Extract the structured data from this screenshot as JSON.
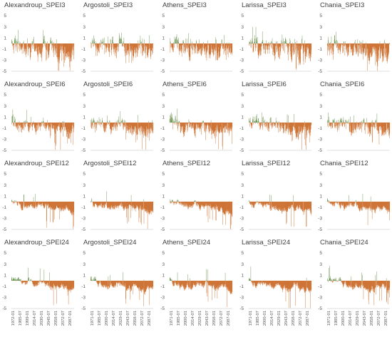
{
  "colors": {
    "positive": "#548235",
    "negative": "#c55a11",
    "axis": "#bfbfbf",
    "text": "#595959"
  },
  "chart_data": {
    "type": "bar",
    "layout": "5 columns x 4 rows of small multiples",
    "y_ticks": [
      "5",
      "3",
      "1",
      "-1",
      "-3",
      "-5"
    ],
    "ylim": [
      -5,
      5
    ],
    "x_ticks_by_column": [
      [
        "1972-01",
        "1985-07",
        "1999-01",
        "2014-07",
        "2030-01",
        "2045-07",
        "2058-01",
        "2072-07",
        "2087-01"
      ],
      [
        "1971-01",
        "1985-07",
        "2000-01",
        "2014-07",
        "2029-01",
        "2043-07",
        "2058-01",
        "2072-07",
        "2087-01"
      ],
      [
        "1971-01",
        "1985-07",
        "2000-01",
        "2014-07",
        "2029-01",
        "2043-07",
        "2058-01",
        "2072-07",
        "2087-01"
      ],
      [
        "1971-01",
        "1985-07",
        "2000-01",
        "2014-07",
        "2029-01",
        "2043-07",
        "2058-01",
        "2072-07",
        "2087-01"
      ],
      [
        "1971-01",
        "1985-07",
        "2000-01",
        "2014-07",
        "2029-01",
        "2043-07",
        "2058-01",
        "2072-07",
        "2087-01"
      ]
    ],
    "panels": [
      {
        "title": "Alexandroup_SPEI3",
        "row": 0,
        "col": 0,
        "scale": 3,
        "neg_depth": 2.5,
        "seed": 11
      },
      {
        "title": "Argostoli_SPEI3",
        "row": 0,
        "col": 1,
        "scale": 3,
        "neg_depth": 2.2,
        "seed": 12
      },
      {
        "title": "Athens_SPEI3",
        "row": 0,
        "col": 2,
        "scale": 3,
        "neg_depth": 2.8,
        "seed": 13
      },
      {
        "title": "Larissa_SPEI3",
        "row": 0,
        "col": 3,
        "scale": 3,
        "neg_depth": 3.0,
        "seed": 14
      },
      {
        "title": "Chania_SPEI3",
        "row": 0,
        "col": 4,
        "scale": 3,
        "neg_depth": 2.4,
        "seed": 15
      },
      {
        "title": "Alexandroup_SPEI6",
        "row": 1,
        "col": 0,
        "scale": 6,
        "neg_depth": 3.0,
        "seed": 21
      },
      {
        "title": "Argostoli_SPEI6",
        "row": 1,
        "col": 1,
        "scale": 6,
        "neg_depth": 2.6,
        "seed": 22
      },
      {
        "title": "Athens_SPEI6",
        "row": 1,
        "col": 2,
        "scale": 6,
        "neg_depth": 3.2,
        "seed": 23
      },
      {
        "title": "Larissa_SPEI6",
        "row": 1,
        "col": 3,
        "scale": 6,
        "neg_depth": 3.6,
        "seed": 24
      },
      {
        "title": "Chania_SPEI6",
        "row": 1,
        "col": 4,
        "scale": 6,
        "neg_depth": 2.5,
        "seed": 25
      },
      {
        "title": "Alexandroup_SPEI12",
        "row": 2,
        "col": 0,
        "scale": 12,
        "neg_depth": 3.4,
        "seed": 31
      },
      {
        "title": "Argostoli_SPEI12",
        "row": 2,
        "col": 1,
        "scale": 12,
        "neg_depth": 2.8,
        "seed": 32
      },
      {
        "title": "Athens_SPEI12",
        "row": 2,
        "col": 2,
        "scale": 12,
        "neg_depth": 3.0,
        "seed": 33
      },
      {
        "title": "Larissa_SPEI12",
        "row": 2,
        "col": 3,
        "scale": 12,
        "neg_depth": 3.8,
        "seed": 34
      },
      {
        "title": "Chania_SPEI12",
        "row": 2,
        "col": 4,
        "scale": 12,
        "neg_depth": 2.6,
        "seed": 35
      },
      {
        "title": "Alexandroup_SPEI24",
        "row": 3,
        "col": 0,
        "scale": 24,
        "neg_depth": 3.8,
        "seed": 41
      },
      {
        "title": "Argostoli_SPEI24",
        "row": 3,
        "col": 1,
        "scale": 24,
        "neg_depth": 3.0,
        "seed": 42
      },
      {
        "title": "Athens_SPEI24",
        "row": 3,
        "col": 2,
        "scale": 24,
        "neg_depth": 3.0,
        "seed": 43
      },
      {
        "title": "Larissa_SPEI24",
        "row": 3,
        "col": 3,
        "scale": 24,
        "neg_depth": 4.5,
        "seed": 44
      },
      {
        "title": "Chania_SPEI24",
        "row": 3,
        "col": 4,
        "scale": 24,
        "neg_depth": 2.6,
        "seed": 45
      }
    ]
  }
}
